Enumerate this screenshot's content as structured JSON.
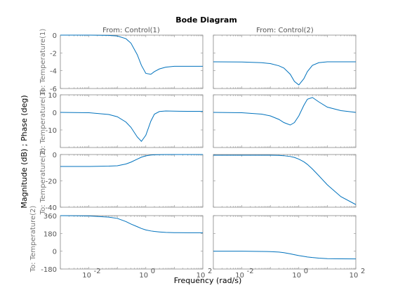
{
  "chart_data": {
    "type": "line",
    "title": "Bode Diagram",
    "xlabel": "Frequency  (rad/s)",
    "ylabel": "Magnitude (dB) ; Phase (deg)",
    "x_scale": "log",
    "xlim": [
      0.001,
      100
    ],
    "x_ticks": [
      {
        "value": 0.01,
        "label": "10"
      },
      {
        "value": 1,
        "label": "10"
      },
      {
        "value": 100,
        "label": "10"
      }
    ],
    "x_tick_exponents": [
      "-2",
      "0",
      "2"
    ],
    "columns": [
      "From: Control(1)",
      "From: Control(2)"
    ],
    "row_labels": [
      "To: Temperature(1)",
      "To: Temperature(1)",
      "To: Temperature(2)",
      "To: Temperature(2)"
    ],
    "rows": [
      {
        "ylim": [
          -6,
          0
        ],
        "yticks": [
          {
            "value": 0,
            "label": "0"
          },
          {
            "value": -2,
            "label": "-2"
          },
          {
            "value": -4,
            "label": "-4"
          },
          {
            "value": -6,
            "label": "-6"
          }
        ],
        "series": [
          {
            "x": [
              0.001,
              0.01,
              0.05,
              0.1,
              0.2,
              0.3,
              0.5,
              0.7,
              1,
              1.5,
              2,
              3,
              5,
              10,
              30,
              100
            ],
            "y": [
              0,
              0,
              -0.03,
              -0.1,
              -0.4,
              -0.9,
              -2.2,
              -3.4,
              -4.3,
              -4.4,
              -4.1,
              -3.8,
              -3.6,
              -3.5,
              -3.5,
              -3.5
            ]
          },
          {
            "x": [
              0.001,
              0.01,
              0.05,
              0.1,
              0.2,
              0.3,
              0.5,
              0.7,
              1,
              1.5,
              2,
              3,
              5,
              10,
              30,
              100
            ],
            "y": [
              -3.0,
              -3.02,
              -3.1,
              -3.2,
              -3.45,
              -3.7,
              -4.4,
              -5.2,
              -5.6,
              -4.9,
              -4.1,
              -3.4,
              -3.1,
              -3.0,
              -3.0,
              -3.0
            ]
          }
        ]
      },
      {
        "ylim": [
          -20,
          10
        ],
        "yticks": [
          {
            "value": 10,
            "label": "10"
          },
          {
            "value": 0,
            "label": "0"
          },
          {
            "value": -10,
            "label": "-10"
          }
        ],
        "series": [
          {
            "x": [
              0.001,
              0.01,
              0.05,
              0.1,
              0.2,
              0.3,
              0.5,
              0.7,
              1,
              1.5,
              2,
              3,
              5,
              10,
              30,
              100
            ],
            "y": [
              0,
              -0.2,
              -1.2,
              -2.5,
              -5.5,
              -8.5,
              -14,
              -16.5,
              -13,
              -5,
              -1,
              0.5,
              0.8,
              0.7,
              0.6,
              0.6
            ]
          },
          {
            "x": [
              0.001,
              0.01,
              0.05,
              0.1,
              0.2,
              0.3,
              0.5,
              0.7,
              1,
              1.5,
              2,
              3,
              5,
              10,
              30,
              100
            ],
            "y": [
              0,
              -0.2,
              -1.0,
              -2.0,
              -4.0,
              -5.8,
              -7.2,
              -5.8,
              -2,
              4,
              7.5,
              8.5,
              6,
              3,
              1,
              0
            ]
          }
        ]
      },
      {
        "ylim": [
          -40,
          0
        ],
        "yticks": [
          {
            "value": 0,
            "label": "0"
          },
          {
            "value": -20,
            "label": "-20"
          },
          {
            "value": -40,
            "label": "-40"
          }
        ],
        "series": [
          {
            "x": [
              0.001,
              0.01,
              0.05,
              0.1,
              0.2,
              0.3,
              0.5,
              0.7,
              1,
              1.5,
              2,
              3,
              5,
              10,
              30,
              100
            ],
            "y": [
              -9.1,
              -9.1,
              -8.8,
              -8.5,
              -7.2,
              -5.8,
              -3.5,
              -2.0,
              -1.0,
              -0.4,
              -0.2,
              -0.1,
              0,
              0,
              0,
              0
            ]
          },
          {
            "x": [
              0.001,
              0.01,
              0.05,
              0.1,
              0.2,
              0.3,
              0.5,
              0.7,
              1,
              1.5,
              2,
              3,
              5,
              10,
              30,
              100
            ],
            "y": [
              -0.5,
              -0.5,
              -0.5,
              -0.55,
              -0.7,
              -0.9,
              -1.5,
              -2.2,
              -3.5,
              -5.5,
              -7.5,
              -11,
              -16,
              -23,
              -32,
              -38
            ]
          }
        ]
      },
      {
        "ylim": [
          -180,
          360
        ],
        "yticks": [
          {
            "value": 360,
            "label": "360"
          },
          {
            "value": 180,
            "label": "180"
          },
          {
            "value": 0,
            "label": "0"
          },
          {
            "value": -180,
            "label": "-180"
          }
        ],
        "series": [
          {
            "x": [
              0.001,
              0.01,
              0.05,
              0.1,
              0.2,
              0.3,
              0.5,
              0.7,
              1,
              1.5,
              2,
              3,
              5,
              10,
              30,
              100
            ],
            "y": [
              360,
              357,
              345,
              332,
              300,
              275,
              248,
              230,
              215,
              205,
              200,
              195,
              190,
              188,
              187,
              187
            ]
          },
          {
            "x": [
              0.001,
              0.01,
              0.05,
              0.1,
              0.2,
              0.3,
              0.5,
              0.7,
              1,
              1.5,
              2,
              3,
              5,
              10,
              30,
              100
            ],
            "y": [
              0,
              0,
              -2,
              -4,
              -9,
              -15,
              -26,
              -35,
              -44,
              -52,
              -58,
              -64,
              -70,
              -75,
              -77,
              -78
            ]
          }
        ]
      }
    ]
  }
}
